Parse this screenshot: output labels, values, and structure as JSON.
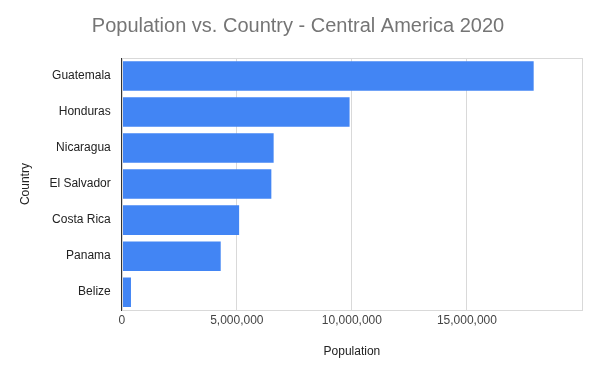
{
  "chart_data": {
    "type": "bar",
    "orientation": "horizontal",
    "title": "Population vs. Country - Central America 2020",
    "x_label": "Population",
    "y_label": "Country",
    "categories": [
      "Guatemala",
      "Honduras",
      "Nicaragua",
      "El Salvador",
      "Costa Rica",
      "Panama",
      "Belize"
    ],
    "values": [
      17900000,
      9900000,
      6600000,
      6500000,
      5100000,
      4300000,
      400000
    ],
    "color": "#4285f4",
    "xlim": [
      0,
      20000000
    ],
    "xticks": [
      0,
      {
        "value": 5000000,
        "label": "5,000,000"
      },
      {
        "value": 10000000,
        "label": "10,000,000"
      },
      {
        "value": 15000000,
        "label": "15,000,000"
      }
    ],
    "grid": true
  }
}
